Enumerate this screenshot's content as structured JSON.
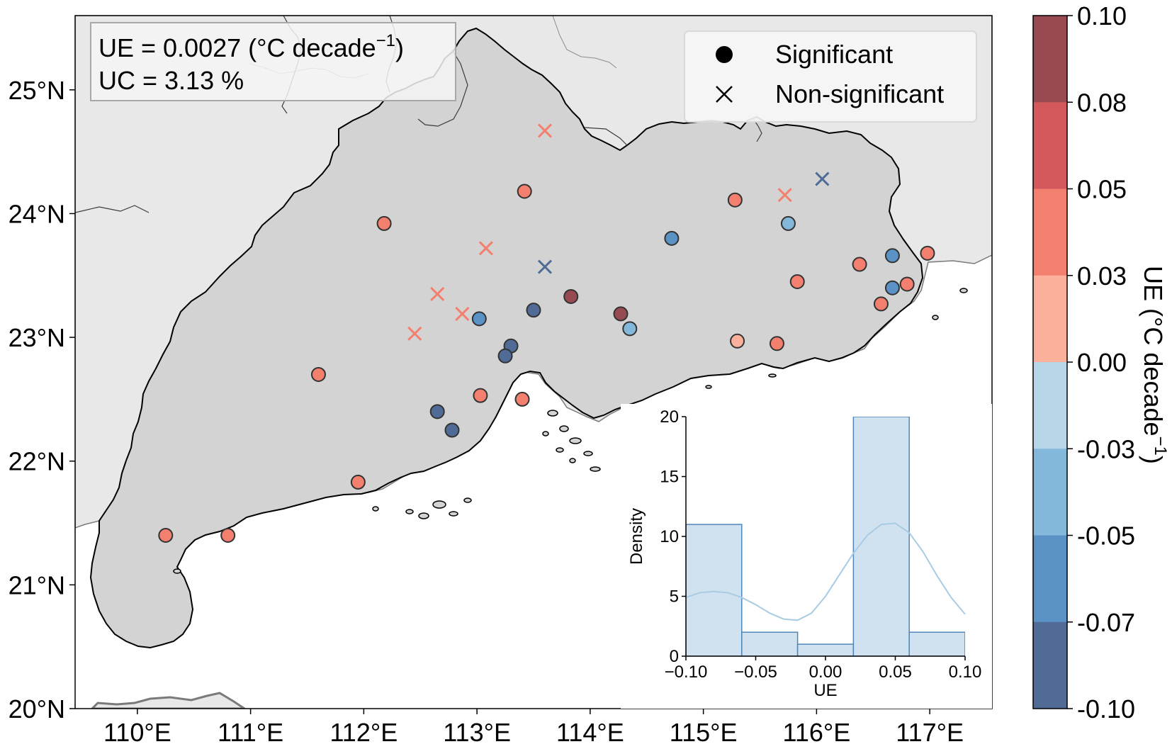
{
  "map": {
    "lat_ticks": [
      "20°N",
      "21°N",
      "22°N",
      "23°N",
      "24°N",
      "25°N"
    ],
    "lon_ticks": [
      "110°E",
      "111°E",
      "112°E",
      "113°E",
      "114°E",
      "115°E",
      "116°E",
      "117°E"
    ],
    "lon_range": [
      109.45,
      117.55
    ],
    "lat_range": [
      20.0,
      25.6
    ],
    "colors": {
      "ocean": "#ffffff",
      "land_region": "#d3d3d3",
      "land_other": "#e8e8e8",
      "border": "#000000"
    }
  },
  "stats_box": {
    "ue_text": "UE = 0.0027 (°C decade",
    "ue_exp": "−1",
    "ue_close": ")",
    "uc_text": "UC = 3.13 %"
  },
  "legend": {
    "significant": "Significant",
    "non_significant": "Non-significant"
  },
  "colorbar": {
    "label": "UE (°C decade",
    "label_exp": "−1",
    "label_close": ")",
    "tick_labels": [
      "0.10",
      "0.08",
      "0.05",
      "0.03",
      "0.00",
      "-0.03",
      "-0.05",
      "-0.07",
      "-0.10"
    ],
    "colors": [
      "#984a52",
      "#d3595c",
      "#f37f6f",
      "#fbb09b",
      "#b7d6e8",
      "#84b8db",
      "#5b92c5",
      "#506c96"
    ]
  },
  "stations": [
    {
      "lon": 113.6,
      "lat": 24.67,
      "sig": false,
      "c": 2
    },
    {
      "lon": 113.42,
      "lat": 24.18,
      "sig": true,
      "c": 2
    },
    {
      "lon": 112.18,
      "lat": 23.92,
      "sig": true,
      "c": 2
    },
    {
      "lon": 113.08,
      "lat": 23.72,
      "sig": false,
      "c": 2
    },
    {
      "lon": 113.6,
      "lat": 23.57,
      "sig": false,
      "c": 7
    },
    {
      "lon": 112.65,
      "lat": 23.35,
      "sig": false,
      "c": 2
    },
    {
      "lon": 112.87,
      "lat": 23.19,
      "sig": false,
      "c": 2
    },
    {
      "lon": 112.45,
      "lat": 23.03,
      "sig": false,
      "c": 2
    },
    {
      "lon": 113.02,
      "lat": 23.15,
      "sig": true,
      "c": 6
    },
    {
      "lon": 113.5,
      "lat": 23.22,
      "sig": true,
      "c": 7
    },
    {
      "lon": 113.83,
      "lat": 23.33,
      "sig": true,
      "c": 0
    },
    {
      "lon": 114.27,
      "lat": 23.19,
      "sig": true,
      "c": 0
    },
    {
      "lon": 114.35,
      "lat": 23.07,
      "sig": true,
      "c": 5
    },
    {
      "lon": 113.3,
      "lat": 22.93,
      "sig": true,
      "c": 7
    },
    {
      "lon": 113.25,
      "lat": 22.85,
      "sig": true,
      "c": 7
    },
    {
      "lon": 111.6,
      "lat": 22.7,
      "sig": true,
      "c": 2
    },
    {
      "lon": 113.03,
      "lat": 22.53,
      "sig": true,
      "c": 2
    },
    {
      "lon": 113.4,
      "lat": 22.5,
      "sig": true,
      "c": 2
    },
    {
      "lon": 112.65,
      "lat": 22.4,
      "sig": true,
      "c": 7
    },
    {
      "lon": 112.78,
      "lat": 22.25,
      "sig": true,
      "c": 7
    },
    {
      "lon": 111.95,
      "lat": 21.83,
      "sig": true,
      "c": 2
    },
    {
      "lon": 110.25,
      "lat": 21.4,
      "sig": true,
      "c": 2
    },
    {
      "lon": 110.8,
      "lat": 21.4,
      "sig": true,
      "c": 2
    },
    {
      "lon": 114.72,
      "lat": 23.8,
      "sig": true,
      "c": 6
    },
    {
      "lon": 115.28,
      "lat": 24.11,
      "sig": true,
      "c": 2
    },
    {
      "lon": 115.72,
      "lat": 24.15,
      "sig": false,
      "c": 2
    },
    {
      "lon": 116.05,
      "lat": 24.28,
      "sig": false,
      "c": 7
    },
    {
      "lon": 115.75,
      "lat": 23.92,
      "sig": true,
      "c": 5
    },
    {
      "lon": 115.83,
      "lat": 23.45,
      "sig": true,
      "c": 2
    },
    {
      "lon": 116.38,
      "lat": 23.59,
      "sig": true,
      "c": 2
    },
    {
      "lon": 116.67,
      "lat": 23.66,
      "sig": true,
      "c": 6
    },
    {
      "lon": 116.98,
      "lat": 23.68,
      "sig": true,
      "c": 2
    },
    {
      "lon": 116.67,
      "lat": 23.4,
      "sig": true,
      "c": 6
    },
    {
      "lon": 116.8,
      "lat": 23.43,
      "sig": true,
      "c": 2
    },
    {
      "lon": 116.57,
      "lat": 23.27,
      "sig": true,
      "c": 2
    },
    {
      "lon": 115.3,
      "lat": 22.97,
      "sig": true,
      "c": 3
    },
    {
      "lon": 115.65,
      "lat": 22.95,
      "sig": true,
      "c": 2
    }
  ],
  "inset": {
    "xlabel": "UE",
    "ylabel": "Density",
    "x_ticks": [
      "−0.10",
      "−0.05",
      "0.00",
      "0.05",
      "0.10"
    ],
    "y_ticks": [
      "0",
      "5",
      "10",
      "15",
      "20"
    ],
    "xlim": [
      -0.1,
      0.1
    ],
    "ylim": [
      0,
      20
    ],
    "bar_color": "#d0e2ef",
    "edge_color": "#4f86b8",
    "kde_color": "#a9cce3"
  },
  "chart_data": {
    "type": "bar",
    "title": "",
    "xlabel": "UE",
    "ylabel": "Density",
    "bins": [
      [
        -0.1,
        -0.06
      ],
      [
        -0.06,
        -0.02
      ],
      [
        -0.02,
        0.02
      ],
      [
        0.02,
        0.06
      ],
      [
        0.06,
        0.1
      ]
    ],
    "values": [
      11,
      2,
      1,
      20,
      2
    ],
    "kde": {
      "x": [
        -0.1,
        -0.09,
        -0.08,
        -0.07,
        -0.06,
        -0.05,
        -0.04,
        -0.03,
        -0.02,
        -0.01,
        0.0,
        0.01,
        0.02,
        0.03,
        0.04,
        0.05,
        0.06,
        0.07,
        0.08,
        0.09,
        0.1
      ],
      "y": [
        4.9,
        5.3,
        5.4,
        5.3,
        4.9,
        4.3,
        3.6,
        3.1,
        3.0,
        3.6,
        5.0,
        6.8,
        8.6,
        10.1,
        11.0,
        11.1,
        10.3,
        8.7,
        6.7,
        4.9,
        3.5
      ]
    },
    "xlim": [
      -0.1,
      0.1
    ],
    "ylim": [
      0,
      20
    ]
  }
}
